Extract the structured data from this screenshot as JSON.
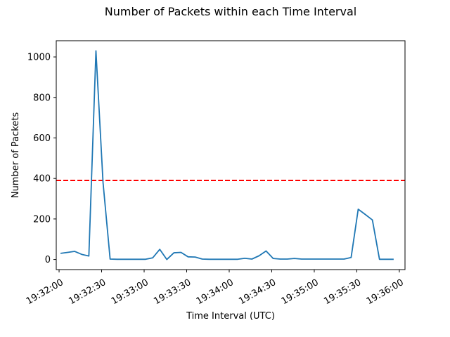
{
  "chart_data": {
    "type": "line",
    "title": "Number of Packets within each Time Interval",
    "xlabel": "Time Interval (UTC)",
    "ylabel": "Number of Packets",
    "xlim": [
      "19:31:58",
      "19:36:04"
    ],
    "ylim": [
      -50,
      1080
    ],
    "xticks": [
      "19:32:00",
      "19:32:30",
      "19:33:00",
      "19:33:30",
      "19:34:00",
      "19:34:30",
      "19:35:00",
      "19:35:30",
      "19:36:00"
    ],
    "yticks": [
      0,
      200,
      400,
      600,
      800,
      1000
    ],
    "grid": false,
    "line_color": "#1f77b4",
    "threshold": {
      "value": 390,
      "color": "#ff0000",
      "style": "dashed"
    },
    "series": [
      {
        "x": [
          "19:32:01",
          "19:32:06",
          "19:32:11",
          "19:32:16",
          "19:32:21",
          "19:32:26",
          "19:32:31",
          "19:32:36",
          "19:32:41",
          "19:32:46",
          "19:32:51",
          "19:32:56",
          "19:33:01",
          "19:33:06",
          "19:33:11",
          "19:33:16",
          "19:33:21",
          "19:33:26",
          "19:33:31",
          "19:33:36",
          "19:33:41",
          "19:33:46",
          "19:33:51",
          "19:33:56",
          "19:34:01",
          "19:34:06",
          "19:34:11",
          "19:34:16",
          "19:34:21",
          "19:34:26",
          "19:34:31",
          "19:34:36",
          "19:34:41",
          "19:34:46",
          "19:34:51",
          "19:34:56",
          "19:35:01",
          "19:35:06",
          "19:35:11",
          "19:35:16",
          "19:35:21",
          "19:35:26",
          "19:35:31",
          "19:35:36",
          "19:35:41",
          "19:35:46",
          "19:35:51",
          "19:35:56"
        ],
        "values": [
          30,
          35,
          40,
          25,
          17,
          1030,
          380,
          2,
          1,
          1,
          1,
          1,
          1,
          8,
          50,
          0,
          33,
          35,
          13,
          12,
          2,
          1,
          1,
          1,
          1,
          1,
          6,
          2,
          18,
          42,
          5,
          2,
          2,
          5,
          2,
          2,
          2,
          2,
          2,
          2,
          2,
          10,
          248,
          222,
          195,
          1,
          1,
          1
        ]
      }
    ]
  }
}
